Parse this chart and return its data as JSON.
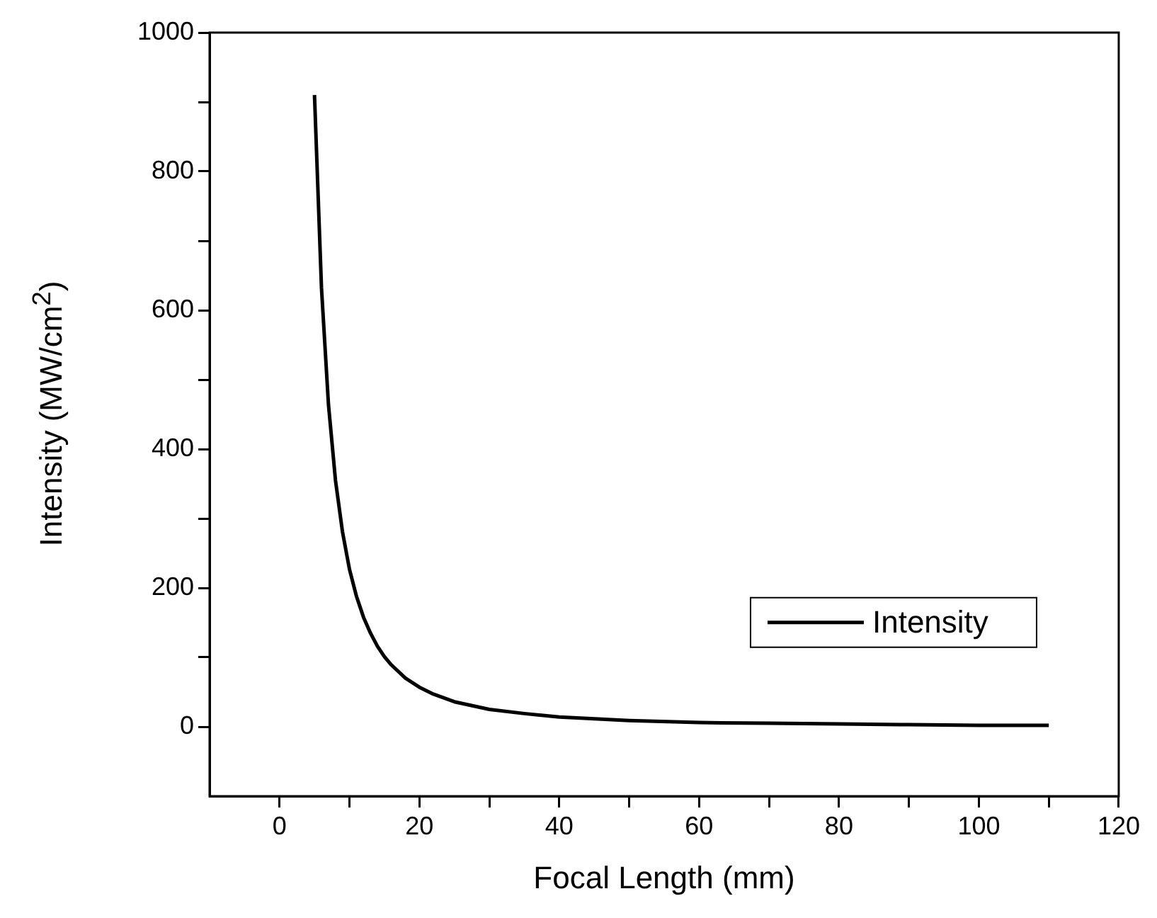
{
  "chart_data": {
    "type": "line",
    "xlabel": "Focal Length (mm)",
    "ylabel": "Intensity (MW/cm$^{2}$)",
    "x": [
      5,
      6,
      7,
      8,
      9,
      10,
      11,
      12,
      13,
      14,
      15,
      16,
      18,
      20,
      22,
      25,
      30,
      35,
      40,
      50,
      60,
      70,
      80,
      90,
      100,
      110
    ],
    "series": [
      {
        "name": "Intensity",
        "color": "#000000",
        "values": [
          910,
          632,
          464,
          355,
          281,
          227,
          188,
          158,
          135,
          116,
          101,
          89,
          70,
          57,
          47,
          36,
          25,
          19,
          14,
          9,
          6,
          5,
          4,
          3,
          2,
          2
        ]
      }
    ],
    "xlim": [
      -10,
      120
    ],
    "xticks": [
      0,
      {
        "value": 10,
        "label": null
      },
      20,
      {
        "value": 30,
        "label": null
      },
      40,
      {
        "value": 50,
        "label": null
      },
      60,
      {
        "value": 70,
        "label": null
      },
      80,
      {
        "value": 90,
        "label": null
      },
      100,
      {
        "value": 110,
        "label": null
      },
      120
    ],
    "ylim": [
      -100,
      1000
    ],
    "yticks": [
      0,
      {
        "value": 100,
        "label": null
      },
      200,
      {
        "value": 300,
        "label": null
      },
      400,
      {
        "value": 500,
        "label": null
      },
      600,
      {
        "value": 700,
        "label": null
      },
      800,
      {
        "value": 900,
        "label": null
      },
      1000
    ],
    "legend": "center right",
    "marker": "none",
    "line_style": "solid"
  }
}
